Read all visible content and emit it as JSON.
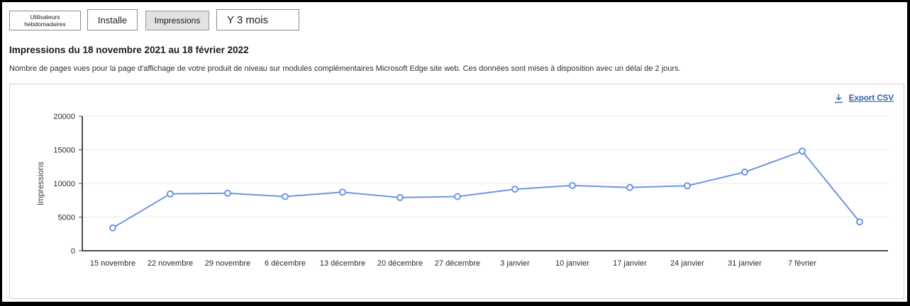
{
  "toolbar": {
    "tabs": [
      {
        "label": "Utilisateurs hebdomadaires",
        "selected": false
      },
      {
        "label": "Installe",
        "selected": false
      },
      {
        "label": "Impressions",
        "selected": true
      }
    ],
    "range_selector": {
      "label": "Y 3 mois"
    }
  },
  "header": {
    "title": "Impressions du 18 novembre 2021 au 18 février 2022",
    "description": "Nombre de pages vues pour la page d'affichage de votre produit de niveau sur modules complémentaires Microsoft Edge site web. Ces données sont mises à disposition avec un délai de 2 jours."
  },
  "card": {
    "export_label": "Export CSV",
    "export_icon": "download-icon",
    "link_color": "#2a62ae"
  },
  "chart_data": {
    "type": "line",
    "title": "Impressions du 18 novembre 2021 au 18 février 2022",
    "categories": [
      "15 novembre",
      "22 novembre",
      "29 novembre",
      "6 décembre",
      "13 décembre",
      "20 décembre",
      "27 décembre",
      "3 janvier",
      "10 janvier",
      "17 janvier",
      "24 janvier",
      "31 janvier",
      "7 février",
      ""
    ],
    "values": [
      3400,
      8450,
      8550,
      8050,
      8700,
      7900,
      8050,
      9150,
      9700,
      9400,
      9650,
      11700,
      14800,
      4300
    ],
    "xlabel": "",
    "ylabel": "Impressions",
    "ylim": [
      0,
      20000
    ],
    "yticks": [
      0,
      5000,
      10000,
      15000,
      20000
    ],
    "grid": true,
    "legend": "none",
    "line_color": "#6e95e0",
    "marker": "open-circle",
    "marker_fill": "#ffffff",
    "axis_color": "#4d4d4d",
    "grid_color": "#e9e9e9",
    "tick_label_color": "#2b2b2b"
  }
}
